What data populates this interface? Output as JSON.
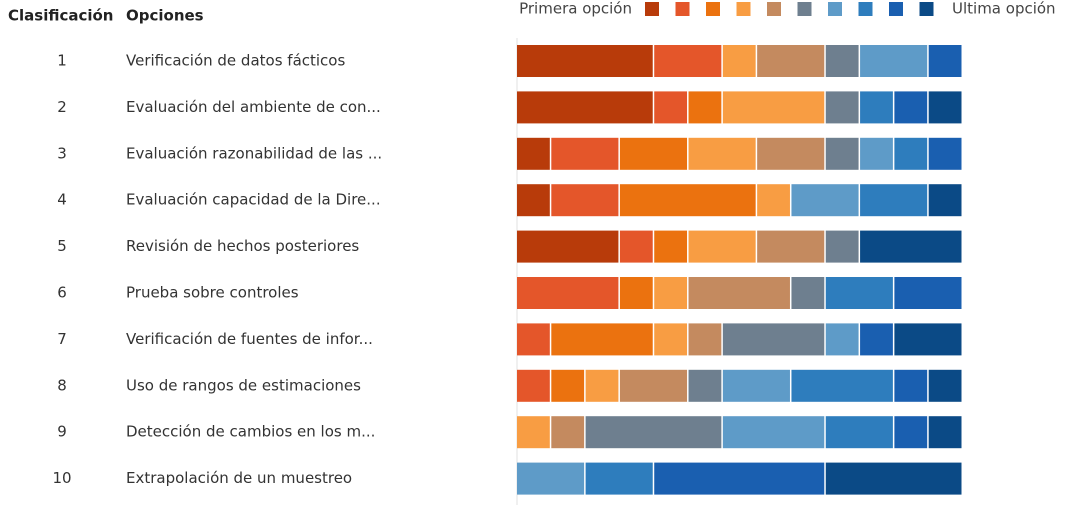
{
  "chart_data": {
    "type": "ranking",
    "rank_header": "Clasificación",
    "option_header": "Opciones",
    "legend_start": "Primera opción",
    "legend_end": "Ultima opción",
    "ranks": [
      1,
      2,
      3,
      4,
      5,
      6,
      7,
      8,
      9,
      10
    ],
    "categories": [
      "Verificación de datos fácticos",
      "Evaluación del ambiente de con...",
      "Evaluación razonabilidad de las ...",
      "Evaluación capacidad de la Dire...",
      "Revisión de hechos posteriores",
      "Prueba sobre controles",
      "Verificación de fuentes de infor...",
      "Uso de rangos de estimaciones",
      "Detección de cambios en los m...",
      "Extrapolación de un muestreo"
    ],
    "xlim": [
      0,
      13
    ],
    "series": [
      {
        "color": "#b83b0a",
        "values": [
          4,
          4,
          1,
          1,
          3,
          0,
          0,
          0,
          0,
          0
        ]
      },
      {
        "color": "#e4562a",
        "values": [
          2,
          1,
          2,
          2,
          1,
          3,
          1,
          1,
          0,
          0
        ]
      },
      {
        "color": "#eb720f",
        "values": [
          0,
          1,
          2,
          4,
          1,
          1,
          3,
          1,
          0,
          0
        ]
      },
      {
        "color": "#f89d43",
        "values": [
          1,
          3,
          2,
          1,
          2,
          1,
          1,
          1,
          1,
          0
        ]
      },
      {
        "color": "#c48a5f",
        "values": [
          2,
          0,
          2,
          0,
          2,
          3,
          1,
          2,
          1,
          0
        ]
      },
      {
        "color": "#6e7f8f",
        "values": [
          1,
          1,
          1,
          0,
          1,
          1,
          3,
          1,
          4,
          0
        ]
      },
      {
        "color": "#5e9bc8",
        "values": [
          2,
          0,
          1,
          2,
          0,
          0,
          1,
          2,
          3,
          2
        ]
      },
      {
        "color": "#2e7dbd",
        "values": [
          0,
          1,
          1,
          2,
          0,
          2,
          0,
          3,
          2,
          2
        ]
      },
      {
        "color": "#1a5fb0",
        "values": [
          1,
          1,
          1,
          0,
          0,
          2,
          1,
          1,
          1,
          5
        ]
      },
      {
        "color": "#0b4a86",
        "values": [
          0,
          1,
          0,
          1,
          3,
          0,
          2,
          1,
          1,
          4
        ]
      }
    ]
  }
}
